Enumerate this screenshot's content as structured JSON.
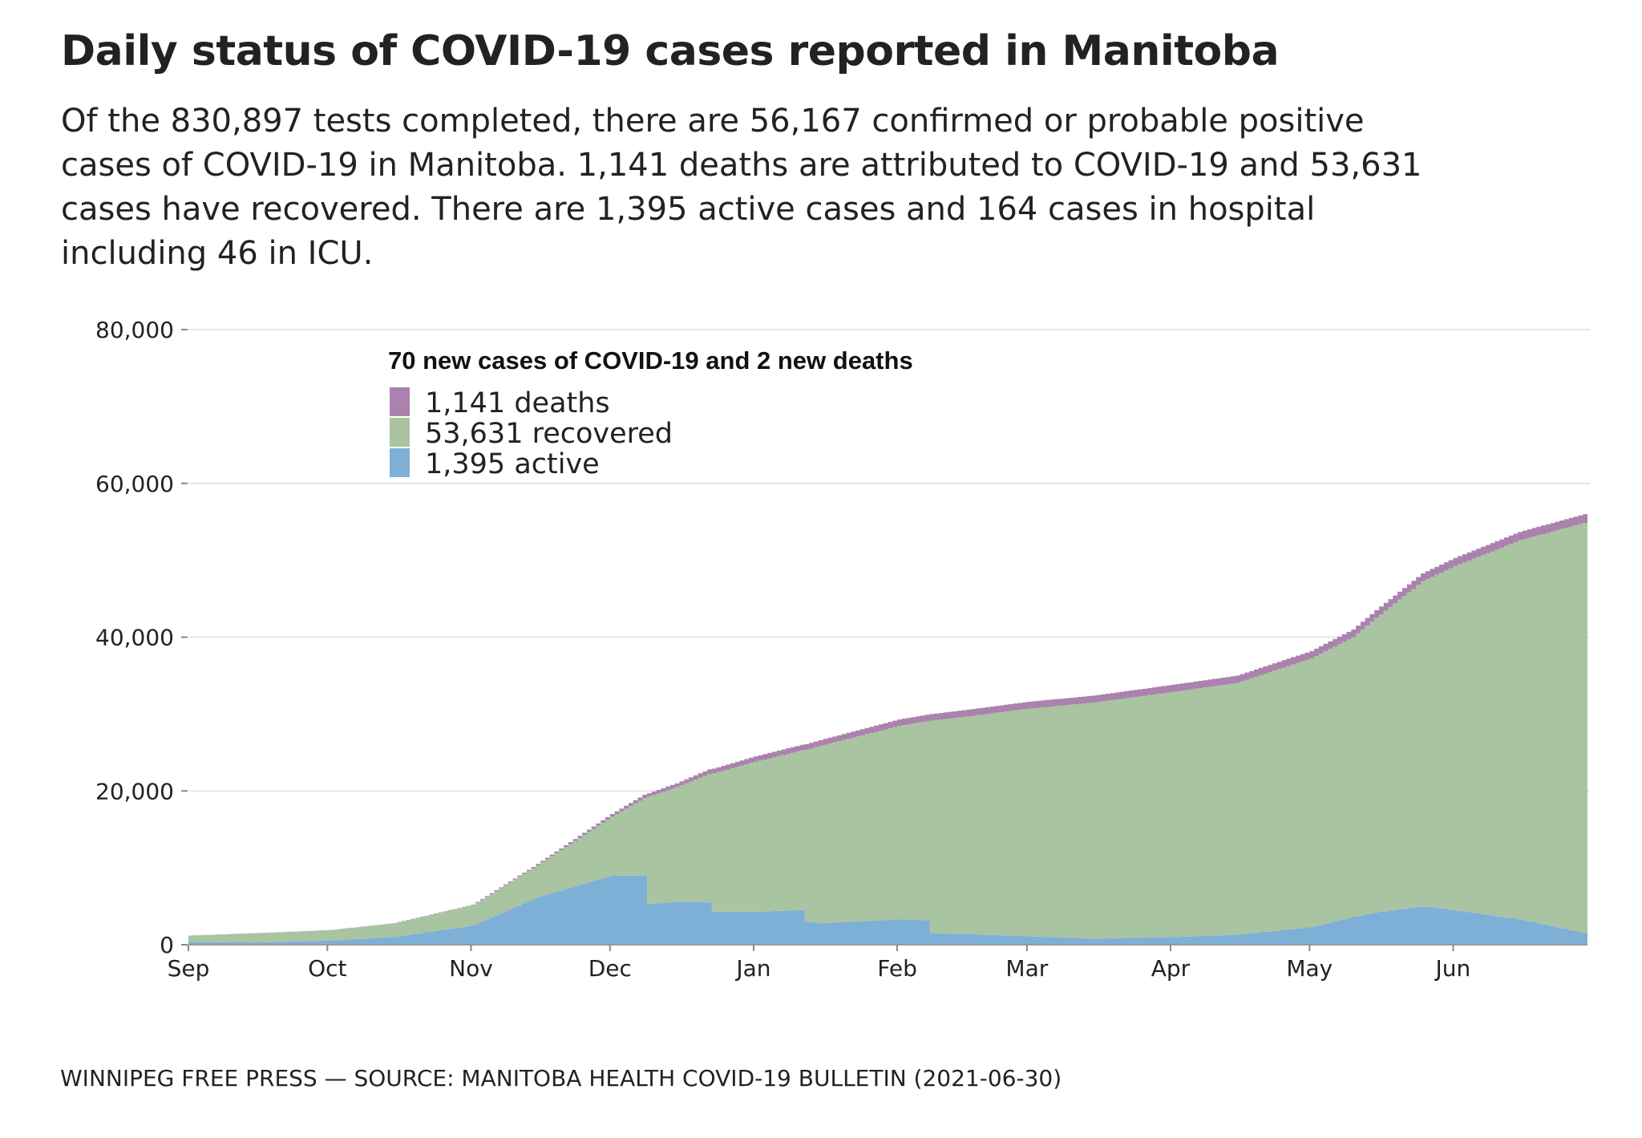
{
  "header": {
    "title": "Daily status of COVID-19 cases reported in Manitoba",
    "subtitle_lines": [
      "Of the 830,897 tests completed, there are 56,167 confirmed or probable positive",
      "cases of COVID-19 in Manitoba. 1,141 deaths are attributed to COVID-19 and 53,631",
      "cases have recovered. There are 1,395 active cases and 164 cases in hospital",
      "including 46 in ICU."
    ]
  },
  "footer": "WINNIPEG FREE PRESS — SOURCE: MANITOBA HEALTH COVID-19 BULLETIN (2021-06-30)",
  "chart_data": {
    "type": "area",
    "stacked": true,
    "step": true,
    "legend_title": "70 new cases of COVID-19 and 2 new deaths",
    "legend_placement": "top-left",
    "grid": "horizontal",
    "ylim": [
      0,
      80000
    ],
    "xlim": [
      "2020-09-01",
      "2021-06-30"
    ],
    "yticks": [
      0,
      20000,
      40000,
      60000,
      80000
    ],
    "ytick_labels": [
      "0",
      "20,000",
      "40,000",
      "60,000",
      "80,000"
    ],
    "xticks": [
      "2020-09-01",
      "2020-10-01",
      "2020-11-01",
      "2020-12-01",
      "2021-01-01",
      "2021-02-01",
      "2021-03-01",
      "2021-04-01",
      "2021-05-01",
      "2021-06-01"
    ],
    "xtick_labels": [
      "Sep",
      "Oct",
      "Nov",
      "Dec",
      "Jan",
      "Feb",
      "Mar",
      "Apr",
      "May",
      "Jun"
    ],
    "series": [
      {
        "name": "1,141 deaths",
        "key": "deaths",
        "color": "#ab82ae"
      },
      {
        "name": "53,631 recovered",
        "key": "recovered",
        "color": "#a9c4a0"
      },
      {
        "name": "1,395 active",
        "key": "active",
        "color": "#7eb0d7"
      }
    ],
    "points": [
      {
        "date": "2020-09-01",
        "total": 1200,
        "active": 350,
        "deaths": 16
      },
      {
        "date": "2020-09-15",
        "total": 1500,
        "active": 300,
        "deaths": 17
      },
      {
        "date": "2020-10-01",
        "total": 1900,
        "active": 550,
        "deaths": 20
      },
      {
        "date": "2020-10-15",
        "total": 2800,
        "active": 1000,
        "deaths": 35
      },
      {
        "date": "2020-11-01",
        "total": 5200,
        "active": 2500,
        "deaths": 70
      },
      {
        "date": "2020-11-15",
        "total": 10500,
        "active": 6200,
        "deaths": 170
      },
      {
        "date": "2020-12-01",
        "total": 17000,
        "active": 9000,
        "deaths": 350
      },
      {
        "date": "2020-12-08",
        "total": 19500,
        "active": 9000,
        "deaths": 430
      },
      {
        "date": "2020-12-09",
        "total": 19700,
        "active": 5300,
        "deaths": 440
      },
      {
        "date": "2020-12-15",
        "total": 21000,
        "active": 5600,
        "deaths": 520
      },
      {
        "date": "2020-12-22",
        "total": 22800,
        "active": 5500,
        "deaths": 600
      },
      {
        "date": "2020-12-23",
        "total": 22900,
        "active": 4300,
        "deaths": 610
      },
      {
        "date": "2021-01-01",
        "total": 24500,
        "active": 4300,
        "deaths": 700
      },
      {
        "date": "2021-01-11",
        "total": 26000,
        "active": 4500,
        "deaths": 740
      },
      {
        "date": "2021-01-12",
        "total": 26100,
        "active": 3000,
        "deaths": 745
      },
      {
        "date": "2021-01-15",
        "total": 26600,
        "active": 2800,
        "deaths": 760
      },
      {
        "date": "2021-02-01",
        "total": 29300,
        "active": 3300,
        "deaths": 830
      },
      {
        "date": "2021-02-07",
        "total": 29900,
        "active": 3200,
        "deaths": 850
      },
      {
        "date": "2021-02-08",
        "total": 30000,
        "active": 1500,
        "deaths": 855
      },
      {
        "date": "2021-02-15",
        "total": 30500,
        "active": 1400,
        "deaths": 870
      },
      {
        "date": "2021-03-01",
        "total": 31600,
        "active": 1100,
        "deaths": 900
      },
      {
        "date": "2021-03-15",
        "total": 32400,
        "active": 800,
        "deaths": 915
      },
      {
        "date": "2021-04-01",
        "total": 33800,
        "active": 1000,
        "deaths": 935
      },
      {
        "date": "2021-04-15",
        "total": 35000,
        "active": 1300,
        "deaths": 950
      },
      {
        "date": "2021-05-01",
        "total": 38200,
        "active": 2300,
        "deaths": 975
      },
      {
        "date": "2021-05-10",
        "total": 41000,
        "active": 3600,
        "deaths": 990
      },
      {
        "date": "2021-05-15",
        "total": 43500,
        "active": 4200,
        "deaths": 1005
      },
      {
        "date": "2021-05-25",
        "total": 48300,
        "active": 5000,
        "deaths": 1035
      },
      {
        "date": "2021-06-01",
        "total": 50300,
        "active": 4500,
        "deaths": 1060
      },
      {
        "date": "2021-06-15",
        "total": 53700,
        "active": 3300,
        "deaths": 1110
      },
      {
        "date": "2021-06-30",
        "total": 56167,
        "active": 1395,
        "deaths": 1141
      }
    ]
  }
}
